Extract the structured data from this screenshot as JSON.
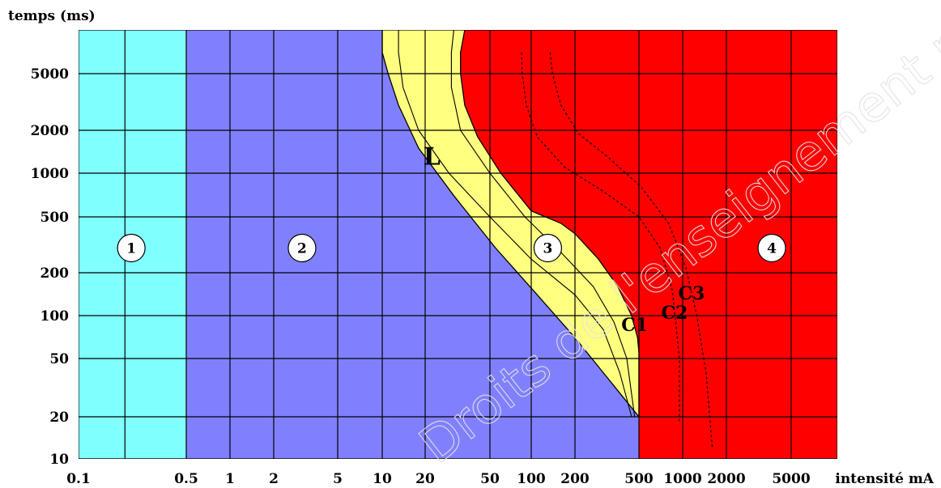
{
  "chart_data": {
    "type": "area",
    "title": "",
    "xlabel": "intensité mA",
    "ylabel": "temps (ms)",
    "x_scale": "log",
    "y_scale": "log",
    "xlim": [
      0.1,
      10000
    ],
    "ylim": [
      10,
      10000
    ],
    "grid": true,
    "x_ticks": [
      {
        "value": 0.1,
        "label": "0.1"
      },
      {
        "value": 0.5,
        "label": "0.5"
      },
      {
        "value": 1,
        "label": "1"
      },
      {
        "value": 2,
        "label": "2"
      },
      {
        "value": 5,
        "label": "5"
      },
      {
        "value": 10,
        "label": "10"
      },
      {
        "value": 20,
        "label": "20"
      },
      {
        "value": 50,
        "label": "50"
      },
      {
        "value": 100,
        "label": "100"
      },
      {
        "value": 200,
        "label": "200"
      },
      {
        "value": 500,
        "label": "500"
      },
      {
        "value": 1000,
        "label": "1000"
      },
      {
        "value": 2000,
        "label": "2000"
      },
      {
        "value": 5000,
        "label": "5000"
      }
    ],
    "y_ticks": [
      {
        "value": 10,
        "label": "10"
      },
      {
        "value": 20,
        "label": "20"
      },
      {
        "value": 50,
        "label": "50"
      },
      {
        "value": 100,
        "label": "100"
      },
      {
        "value": 200,
        "label": "200"
      },
      {
        "value": 500,
        "label": "500"
      },
      {
        "value": 1000,
        "label": "1000"
      },
      {
        "value": 2000,
        "label": "2000"
      },
      {
        "value": 5000,
        "label": "5000"
      }
    ],
    "zones": [
      {
        "label": "1",
        "color": "#80ffff",
        "marker": {
          "x": 0.22,
          "y": 300
        }
      },
      {
        "label": "2",
        "color": "#8080ff",
        "marker": {
          "x": 3,
          "y": 300
        }
      },
      {
        "label": "3",
        "color": "#ffff80",
        "marker": {
          "x": 130,
          "y": 300
        }
      },
      {
        "label": "4",
        "color": "#ff0000",
        "marker": {
          "x": 3800,
          "y": 300
        }
      }
    ],
    "boundaries": [
      {
        "name": "zone-1-2",
        "points": [
          {
            "x": 0.5,
            "y": 10000
          },
          {
            "x": 0.5,
            "y": 10
          }
        ]
      },
      {
        "name": "L",
        "label": "L",
        "label_at": {
          "x": 22,
          "y": 1150
        },
        "points": [
          {
            "x": 10,
            "y": 10000
          },
          {
            "x": 10,
            "y": 7000
          },
          {
            "x": 11,
            "y": 5000
          },
          {
            "x": 13,
            "y": 3000
          },
          {
            "x": 18,
            "y": 1500
          },
          {
            "x": 30,
            "y": 700
          },
          {
            "x": 55,
            "y": 300
          },
          {
            "x": 110,
            "y": 140
          },
          {
            "x": 200,
            "y": 70
          },
          {
            "x": 300,
            "y": 40
          },
          {
            "x": 500,
            "y": 20
          }
        ]
      },
      {
        "name": "C1",
        "label": "C1",
        "label_at": {
          "x": 470,
          "y": 78
        },
        "points": [
          {
            "x": 35,
            "y": 10000
          },
          {
            "x": 33,
            "y": 7000
          },
          {
            "x": 33,
            "y": 5000
          },
          {
            "x": 35,
            "y": 3000
          },
          {
            "x": 42,
            "y": 1800
          },
          {
            "x": 60,
            "y": 1000
          },
          {
            "x": 100,
            "y": 550
          },
          {
            "x": 160,
            "y": 450
          },
          {
            "x": 200,
            "y": 380
          },
          {
            "x": 280,
            "y": 250
          },
          {
            "x": 370,
            "y": 160
          },
          {
            "x": 450,
            "y": 100
          },
          {
            "x": 490,
            "y": 70
          },
          {
            "x": 500,
            "y": 55
          },
          {
            "x": 500,
            "y": 20
          }
        ]
      },
      {
        "name": "C2",
        "label": "C2",
        "label_at": {
          "x": 880,
          "y": 95
        },
        "points": [
          {
            "x": 85,
            "y": 7000
          },
          {
            "x": 86,
            "y": 5000
          },
          {
            "x": 92,
            "y": 3000
          },
          {
            "x": 110,
            "y": 1800
          },
          {
            "x": 170,
            "y": 1100
          },
          {
            "x": 300,
            "y": 750
          },
          {
            "x": 500,
            "y": 500
          },
          {
            "x": 700,
            "y": 300
          },
          {
            "x": 850,
            "y": 150
          },
          {
            "x": 950,
            "y": 50
          },
          {
            "x": 950,
            "y": 18
          }
        ]
      },
      {
        "name": "C3",
        "label": "C3",
        "label_at": {
          "x": 1150,
          "y": 130
        },
        "points": [
          {
            "x": 135,
            "y": 7000
          },
          {
            "x": 140,
            "y": 5000
          },
          {
            "x": 160,
            "y": 3000
          },
          {
            "x": 210,
            "y": 1900
          },
          {
            "x": 320,
            "y": 1300
          },
          {
            "x": 520,
            "y": 800
          },
          {
            "x": 800,
            "y": 450
          },
          {
            "x": 1050,
            "y": 220
          },
          {
            "x": 1250,
            "y": 100
          },
          {
            "x": 1450,
            "y": 40
          },
          {
            "x": 1600,
            "y": 12
          }
        ]
      }
    ],
    "series": [
      {
        "name": "",
        "style": "solid",
        "points": [
          {
            "x": 13,
            "y": 10000
          },
          {
            "x": 13,
            "y": 7000
          },
          {
            "x": 14,
            "y": 4000
          },
          {
            "x": 18,
            "y": 2000
          },
          {
            "x": 28,
            "y": 1000
          },
          {
            "x": 50,
            "y": 500
          },
          {
            "x": 100,
            "y": 250
          },
          {
            "x": 200,
            "y": 140
          },
          {
            "x": 300,
            "y": 80
          },
          {
            "x": 380,
            "y": 40
          },
          {
            "x": 450,
            "y": 20
          }
        ]
      },
      {
        "name": "",
        "style": "solid",
        "points": [
          {
            "x": 30,
            "y": 10000
          },
          {
            "x": 29,
            "y": 7000
          },
          {
            "x": 29,
            "y": 4000
          },
          {
            "x": 33,
            "y": 2000
          },
          {
            "x": 50,
            "y": 1000
          },
          {
            "x": 90,
            "y": 500
          },
          {
            "x": 160,
            "y": 280
          },
          {
            "x": 260,
            "y": 160
          },
          {
            "x": 350,
            "y": 90
          },
          {
            "x": 420,
            "y": 50
          },
          {
            "x": 470,
            "y": 20
          }
        ]
      }
    ],
    "watermark": "Droits de l'enseignement professionnel"
  }
}
